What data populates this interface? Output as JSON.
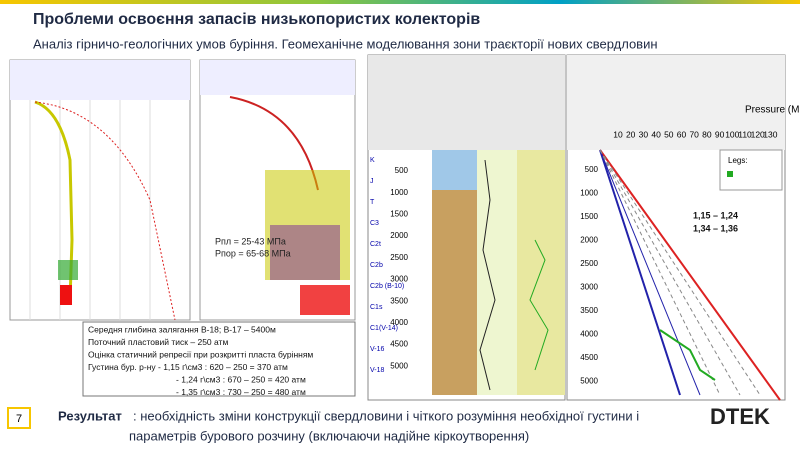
{
  "header": {
    "title": "Проблеми освоєння запасів низькопористих колекторів",
    "subtitle": "Аналіз гірничо-геологічних умов буріння. Геомеханічне моделювання зони траєкторії нових свердловин"
  },
  "plot_notes": [
    "Рпл = 25-43 МПа",
    "Рпор = 65-68 МПа"
  ],
  "note_box": [
    "Середня глибина залягання В-18; В-17 – 5400м",
    "Поточний пластовий тиск – 250 атм",
    "Оцінка статичний репресії при розкритті пласта бурінням",
    "Густина бур. р-ну - 1,15 г\\см3 : 620 – 250 = 370 атм",
    "- 1,24 г\\см3 : 670 – 250 = 420 атм",
    "- 1,35 г\\см3 : 730 – 250 = 480 атм"
  ],
  "log_panel": {
    "depths": [
      "500",
      "1000",
      "1500",
      "2000",
      "2500",
      "3000",
      "3500",
      "4000",
      "4500",
      "5000"
    ],
    "horizons": [
      "K",
      "J",
      "T",
      "C3",
      "C2t",
      "C2b",
      "C2b (B-10)",
      "C1s",
      "C1(V-14)",
      "V-16",
      "V-18"
    ]
  },
  "pressure_panel": {
    "axis_title": "Pressure (MPa)",
    "ticks": [
      "10",
      "20",
      "30",
      "40",
      "50",
      "60",
      "70",
      "80",
      "90",
      "100",
      "110",
      "120",
      "130"
    ],
    "depths": [
      "500",
      "1000",
      "1500",
      "2000",
      "2500",
      "3000",
      "3500",
      "4000",
      "4500",
      "5000"
    ],
    "legend_title": "Legs:",
    "density_ranges": [
      "1,15 – 1,24",
      "1,34 – 1,36"
    ]
  },
  "footer": {
    "page": "7",
    "result_label": "Результат",
    "result_line1": ": необхідність зміни конструкції свердловини і чіткого розуміння необхідної густини і",
    "result_line2": "параметрів бурового розчину (включаючи надійне кіркоутворення)",
    "logo": "DTEK"
  }
}
